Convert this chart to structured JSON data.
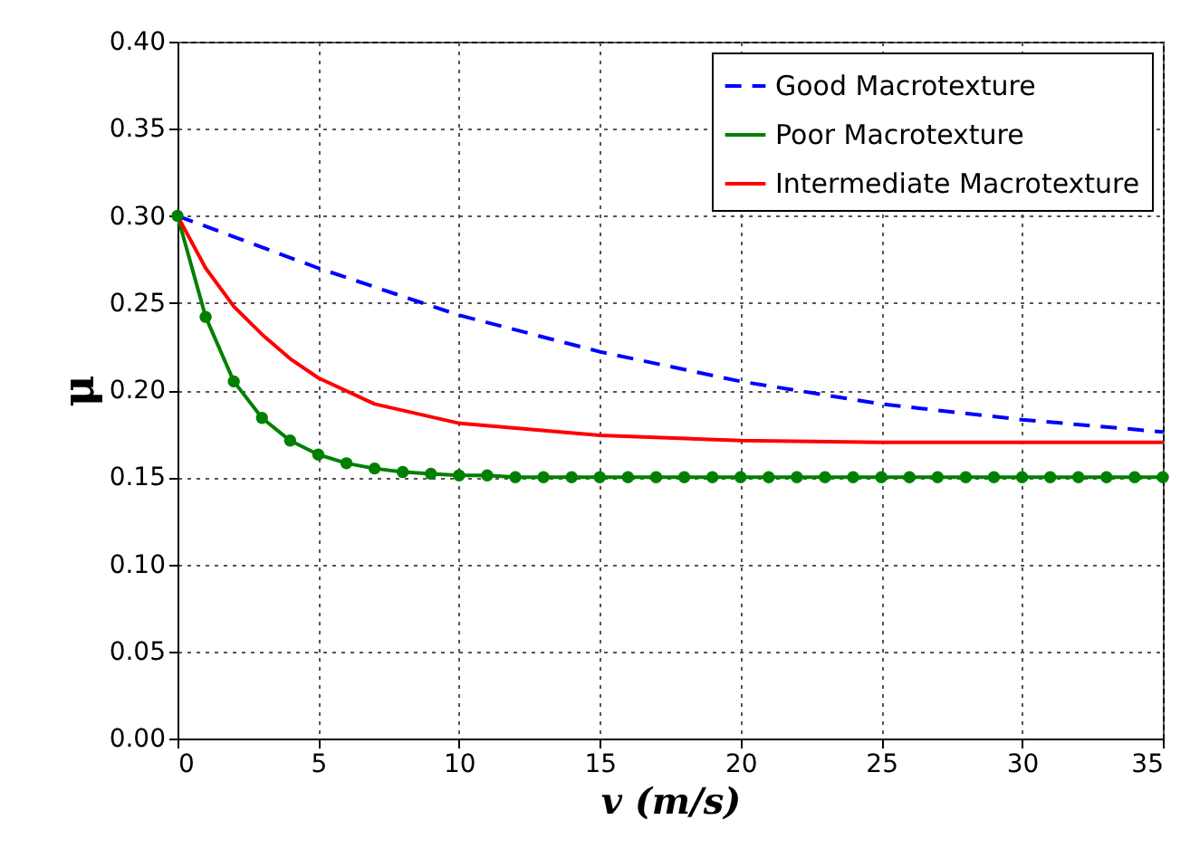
{
  "chart_data": {
    "type": "line",
    "xlabel": "v (m/s)",
    "ylabel": "μ",
    "xlim": [
      0,
      35
    ],
    "ylim": [
      0,
      0.4
    ],
    "xticks": [
      0,
      5,
      10,
      15,
      20,
      25,
      30,
      35
    ],
    "yticks": [
      {
        "value": 0,
        "label": "0.00"
      },
      {
        "value": 0.05,
        "label": "0.05"
      },
      {
        "value": 0.1,
        "label": "0.10"
      },
      {
        "value": 0.15,
        "label": "0.15"
      },
      {
        "value": 0.2,
        "label": "0.20"
      },
      {
        "value": 0.25,
        "label": "0.25"
      },
      {
        "value": 0.3,
        "label": "0.30"
      },
      {
        "value": 0.35,
        "label": "0.35"
      },
      {
        "value": 0.4,
        "label": "0.40"
      }
    ],
    "grid": true,
    "legend": "top right",
    "series": [
      {
        "name": "Good Macrotexture",
        "color": "#0000ff",
        "line_style": "dashed",
        "marker": "none",
        "x": [
          0,
          5,
          10,
          15,
          20,
          25,
          30,
          35
        ],
        "values": [
          0.3,
          0.27,
          0.243,
          0.222,
          0.205,
          0.192,
          0.183,
          0.176
        ]
      },
      {
        "name": "Poor Macrotexture",
        "color": "#008000",
        "line_style": "solid",
        "marker": "circle",
        "x": [
          0,
          1,
          2,
          3,
          4,
          5,
          6,
          7,
          8,
          9,
          10,
          11,
          12,
          13,
          14,
          15,
          16,
          17,
          18,
          19,
          20,
          21,
          22,
          23,
          24,
          25,
          26,
          27,
          28,
          29,
          30,
          31,
          32,
          33,
          34,
          35
        ],
        "values": [
          0.3,
          0.242,
          0.205,
          0.184,
          0.171,
          0.163,
          0.158,
          0.155,
          0.153,
          0.152,
          0.151,
          0.151,
          0.15,
          0.15,
          0.15,
          0.15,
          0.15,
          0.15,
          0.15,
          0.15,
          0.15,
          0.15,
          0.15,
          0.15,
          0.15,
          0.15,
          0.15,
          0.15,
          0.15,
          0.15,
          0.15,
          0.15,
          0.15,
          0.15,
          0.15,
          0.15
        ]
      },
      {
        "name": "Intermediate Macrotexture",
        "color": "#ff0000",
        "line_style": "solid",
        "marker": "none",
        "x": [
          0,
          1,
          2,
          3,
          4,
          5,
          7,
          10,
          15,
          20,
          25,
          35
        ],
        "values": [
          0.3,
          0.27,
          0.248,
          0.232,
          0.218,
          0.207,
          0.192,
          0.181,
          0.174,
          0.171,
          0.17,
          0.17
        ]
      }
    ]
  }
}
